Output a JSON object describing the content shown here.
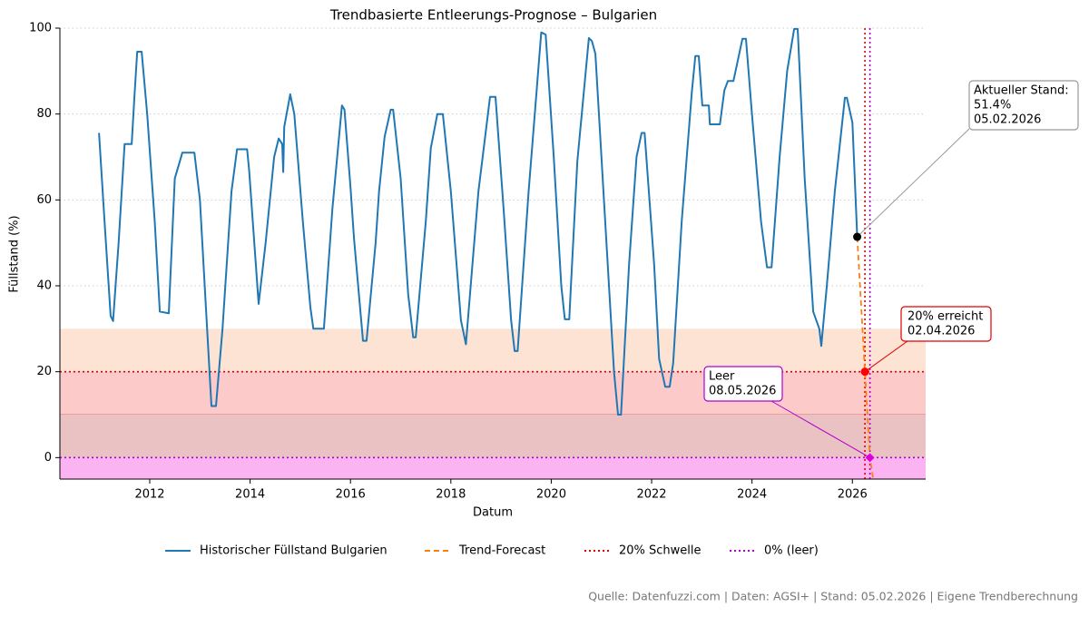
{
  "chart_data": {
    "type": "line",
    "title": "Trendbasierte Entleerungs-Prognose – Bulgarien",
    "xlabel": "Datum",
    "ylabel": "Füllstand (%)",
    "source": "Quelle: Datenfuzzi.com | Daten: AGSI+ | Stand: 05.02.2026 | Eigene Trendberechnung",
    "xlim": [
      2010.21,
      2027.46
    ],
    "ylim": [
      -5,
      100
    ],
    "xticks": [
      2012,
      2014,
      2016,
      2018,
      2020,
      2022,
      2024,
      2026
    ],
    "yticks": [
      0,
      20,
      40,
      60,
      80,
      100
    ],
    "grid": true,
    "legend": "bottom",
    "bands": [
      {
        "from": 20,
        "to": 30,
        "color": "#fde3d4"
      },
      {
        "from": 10,
        "to": 20,
        "color": "#fdcaca",
        "edge": "#e88080"
      },
      {
        "from": 0,
        "to": 10,
        "color": "#eac2c4"
      },
      {
        "from": -5,
        "to": 0,
        "color": "#fbb4f1"
      }
    ],
    "series": [
      {
        "name": "Historischer Füllstand Bulgarien",
        "color": "#1f77b4",
        "dash": "solid",
        "x": [
          2010.99,
          2011.1,
          2011.22,
          2011.27,
          2011.38,
          2011.5,
          2011.64,
          2011.7,
          2011.75,
          2011.84,
          2011.95,
          2012.1,
          2012.2,
          2012.38,
          2012.5,
          2012.6,
          2012.65,
          2012.89,
          2013.0,
          2013.12,
          2013.23,
          2013.32,
          2013.45,
          2013.63,
          2013.74,
          2013.94,
          2013.98,
          2014.17,
          2014.31,
          2014.48,
          2014.57,
          2014.64,
          2014.66,
          2014.68,
          2014.8,
          2014.88,
          2015.05,
          2015.2,
          2015.26,
          2015.47,
          2015.64,
          2015.83,
          2015.88,
          2016.0,
          2016.07,
          2016.25,
          2016.32,
          2016.5,
          2016.57,
          2016.68,
          2016.8,
          2016.85,
          2017.0,
          2017.15,
          2017.25,
          2017.3,
          2017.5,
          2017.6,
          2017.73,
          2017.84,
          2018.0,
          2018.2,
          2018.3,
          2018.43,
          2018.55,
          2018.78,
          2018.89,
          2019.05,
          2019.2,
          2019.27,
          2019.33,
          2019.55,
          2019.7,
          2019.8,
          2019.89,
          2020.05,
          2020.2,
          2020.27,
          2020.36,
          2020.38,
          2020.52,
          2020.75,
          2020.81,
          2020.88,
          2021.05,
          2021.25,
          2021.33,
          2021.39,
          2021.55,
          2021.7,
          2021.8,
          2021.86,
          2022.05,
          2022.15,
          2022.27,
          2022.36,
          2022.43,
          2022.6,
          2022.8,
          2022.87,
          2022.94,
          2023.01,
          2023.14,
          2023.16,
          2023.36,
          2023.45,
          2023.52,
          2023.63,
          2023.81,
          2023.88,
          2024.0,
          2024.18,
          2024.3,
          2024.39,
          2024.55,
          2024.7,
          2024.84,
          2024.91,
          2025.05,
          2025.22,
          2025.34,
          2025.38,
          2025.49,
          2025.65,
          2025.85,
          2025.89,
          2026.0,
          2026.096
        ],
        "values": [
          75.6,
          55,
          33,
          31.8,
          50,
          73,
          73,
          85,
          94.5,
          94.5,
          80,
          55,
          34,
          33.6,
          65,
          69,
          71,
          71,
          60,
          35,
          12,
          12,
          30,
          62,
          71.8,
          71.8,
          67,
          35.8,
          50,
          70,
          74.3,
          73,
          66.5,
          77,
          84.6,
          80,
          55,
          35,
          30,
          30,
          58,
          82,
          81,
          63,
          51,
          27.2,
          27.2,
          50,
          62,
          74.7,
          81,
          81,
          65,
          38,
          28,
          28,
          55,
          72,
          80,
          80,
          62,
          32,
          26.4,
          45,
          62,
          84,
          84,
          58,
          32,
          24.8,
          24.8,
          62,
          84,
          99,
          98.5,
          70,
          40,
          32.2,
          32.2,
          37,
          69,
          97.7,
          97,
          94,
          60,
          20,
          10,
          10,
          45,
          70,
          75.6,
          75.6,
          45,
          23,
          16.5,
          16.5,
          22,
          55,
          85,
          93.5,
          93.5,
          82,
          82,
          77.6,
          77.6,
          85.5,
          87.7,
          87.7,
          97.5,
          97.5,
          80,
          55,
          44.3,
          44.3,
          70,
          90,
          99.8,
          99.8,
          65,
          34,
          30,
          26,
          40,
          62,
          83.8,
          83.8,
          78,
          51.4
        ]
      },
      {
        "name": "Trend-Forecast",
        "color": "#ff7f0e",
        "dash": "dashed",
        "x": [
          2026.096,
          2026.25,
          2026.35,
          2026.415
        ],
        "values": [
          51.4,
          20,
          0,
          -5
        ]
      }
    ],
    "reference_lines": [
      {
        "name": "20% Schwelle",
        "color": "#e00000",
        "y": 20
      },
      {
        "name": "0% (leer)",
        "color": "#b000d0",
        "y": 0
      }
    ],
    "annotations": [
      {
        "lines": [
          "Aktueller Stand:",
          "51.4%",
          "05.02.2026"
        ],
        "x": 2026.096,
        "y": 51.4,
        "color": "#000000",
        "border": "#999999"
      },
      {
        "lines": [
          "20% erreicht",
          "02.04.2026"
        ],
        "x": 2026.25,
        "y": 20,
        "color": "#ff0000",
        "border": "#e00000"
      },
      {
        "lines": [
          "Leer",
          "08.05.2026"
        ],
        "x": 2026.35,
        "y": 0,
        "color": "#dd00dd",
        "border": "#b000d0"
      }
    ]
  }
}
